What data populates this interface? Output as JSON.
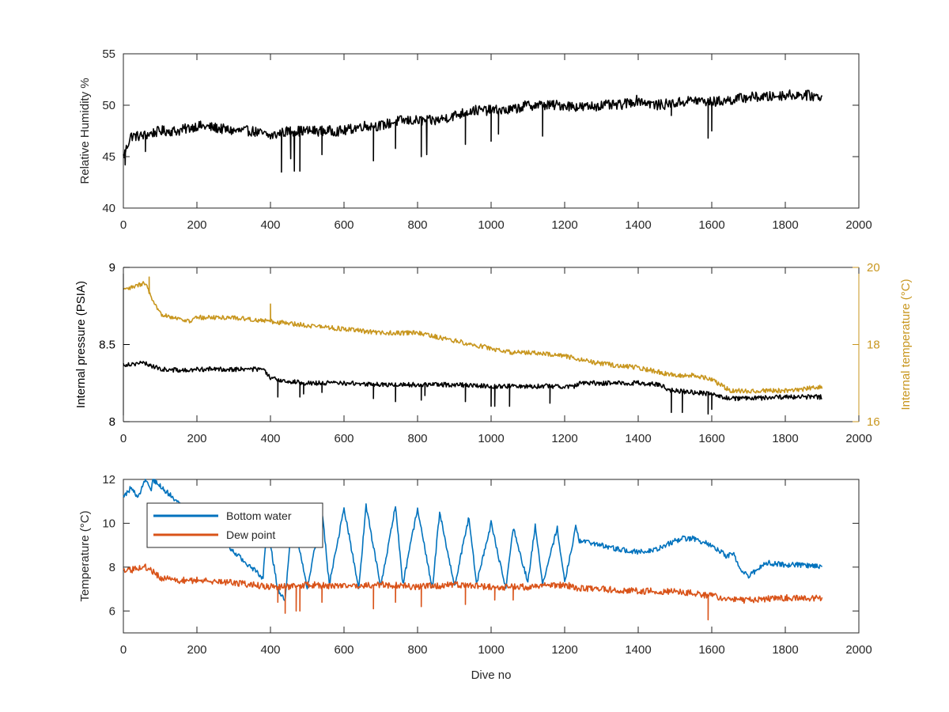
{
  "colors": {
    "black": "#000000",
    "pressure": "#000000",
    "temperature_axis": "#c8961e",
    "temperature_series": "#c8961e",
    "bottom_water": "#0072bd",
    "dew_point": "#d95319",
    "axis": "#262626"
  },
  "chart_data": [
    {
      "id": "humidity",
      "type": "line",
      "xlabel": "",
      "ylabel": "Relative Humidity %",
      "xlim": [
        0,
        2000
      ],
      "ylim": [
        40,
        55
      ],
      "xticks": [
        0,
        200,
        400,
        600,
        800,
        1000,
        1200,
        1400,
        1600,
        1800,
        2000
      ],
      "yticks": [
        40,
        45,
        50,
        55
      ],
      "xtick_labels": [
        "0",
        "200",
        "400",
        "600",
        "800",
        "1000",
        "1200",
        "1400",
        "1600",
        "1800",
        "2000"
      ],
      "ytick_labels": [
        "40",
        "45",
        "50",
        "55"
      ],
      "grid": false,
      "series": [
        {
          "name": "",
          "color": "#000000",
          "x": [
            0,
            20,
            50,
            100,
            150,
            200,
            250,
            300,
            350,
            400,
            450,
            500,
            550,
            600,
            650,
            700,
            750,
            800,
            850,
            900,
            950,
            1000,
            1050,
            1100,
            1150,
            1200,
            1250,
            1300,
            1350,
            1400,
            1450,
            1500,
            1550,
            1600,
            1650,
            1700,
            1750,
            1800,
            1850,
            1900
          ],
          "y": [
            45.0,
            47.0,
            47.0,
            47.5,
            47.5,
            48.0,
            47.8,
            47.5,
            47.5,
            47.0,
            47.5,
            47.5,
            47.5,
            47.5,
            48.0,
            48.0,
            48.5,
            48.5,
            48.5,
            49.0,
            49.5,
            49.5,
            49.5,
            50.0,
            50.0,
            50.0,
            49.8,
            50.0,
            50.0,
            50.5,
            50.0,
            50.2,
            50.5,
            50.3,
            50.5,
            50.8,
            50.8,
            51.0,
            51.0,
            50.8
          ],
          "noise": 0.5,
          "spikes": [
            [
              5,
              44.2
            ],
            [
              60,
              45.5
            ],
            [
              430,
              43.5
            ],
            [
              455,
              44.8
            ],
            [
              465,
              43.6
            ],
            [
              480,
              43.6
            ],
            [
              540,
              45.2
            ],
            [
              680,
              44.6
            ],
            [
              740,
              45.8
            ],
            [
              810,
              45.0
            ],
            [
              825,
              45.2
            ],
            [
              930,
              46.2
            ],
            [
              1000,
              46.5
            ],
            [
              1020,
              47.2
            ],
            [
              1140,
              47.0
            ],
            [
              1490,
              49.0
            ],
            [
              1590,
              46.8
            ],
            [
              1600,
              47.5
            ]
          ]
        }
      ]
    },
    {
      "id": "pressure",
      "type": "line",
      "xlabel": "",
      "ylabel": "Internal pressure (PSIA)",
      "ylabel_right": "Internal temperature (°C)",
      "xlim": [
        0,
        2000
      ],
      "ylim": [
        8,
        9
      ],
      "ylim_right": [
        16,
        20
      ],
      "xticks": [
        0,
        200,
        400,
        600,
        800,
        1000,
        1200,
        1400,
        1600,
        1800,
        2000
      ],
      "yticks": [
        8,
        8.5,
        9
      ],
      "yticks_right": [
        16,
        18,
        20
      ],
      "xtick_labels": [
        "0",
        "200",
        "400",
        "600",
        "800",
        "1000",
        "1200",
        "1400",
        "1600",
        "1800",
        "2000"
      ],
      "ytick_labels": [
        "8",
        "8.5",
        "9"
      ],
      "ytick_labels_right": [
        "16",
        "18",
        "20"
      ],
      "grid": false,
      "series": [
        {
          "name": "",
          "axis": "left",
          "color": "#000000",
          "x": [
            0,
            50,
            70,
            100,
            180,
            200,
            300,
            380,
            400,
            450,
            500,
            600,
            700,
            800,
            900,
            1000,
            1100,
            1200,
            1230,
            1240,
            1300,
            1400,
            1460,
            1480,
            1500,
            1600,
            1650,
            1700,
            1800,
            1900
          ],
          "y": [
            8.37,
            8.38,
            8.37,
            8.34,
            8.33,
            8.34,
            8.34,
            8.34,
            8.28,
            8.26,
            8.25,
            8.25,
            8.24,
            8.24,
            8.24,
            8.23,
            8.23,
            8.23,
            8.23,
            8.25,
            8.25,
            8.25,
            8.24,
            8.21,
            8.2,
            8.18,
            8.15,
            8.15,
            8.16,
            8.16
          ],
          "noise": 0.015,
          "spikes": [
            [
              420,
              8.16
            ],
            [
              480,
              8.16
            ],
            [
              490,
              8.18
            ],
            [
              540,
              8.19
            ],
            [
              680,
              8.15
            ],
            [
              740,
              8.13
            ],
            [
              810,
              8.14
            ],
            [
              820,
              8.17
            ],
            [
              930,
              8.13
            ],
            [
              1000,
              8.1
            ],
            [
              1010,
              8.1
            ],
            [
              1050,
              8.1
            ],
            [
              1160,
              8.12
            ],
            [
              1490,
              8.06
            ],
            [
              1520,
              8.06
            ],
            [
              1590,
              8.05
            ],
            [
              1600,
              8.08
            ]
          ]
        },
        {
          "name": "",
          "axis": "right",
          "color": "#c8961e",
          "x": [
            0,
            30,
            60,
            80,
            100,
            180,
            200,
            300,
            400,
            500,
            600,
            700,
            800,
            900,
            1000,
            1050,
            1100,
            1200,
            1300,
            1400,
            1450,
            1500,
            1550,
            1600,
            1650,
            1700,
            1800,
            1900
          ],
          "y": [
            19.4,
            19.5,
            19.6,
            19.1,
            18.8,
            18.6,
            18.7,
            18.7,
            18.6,
            18.5,
            18.4,
            18.3,
            18.3,
            18.1,
            17.9,
            17.8,
            17.8,
            17.7,
            17.5,
            17.4,
            17.3,
            17.2,
            17.2,
            17.1,
            16.8,
            16.8,
            16.8,
            16.9
          ],
          "noise": 0.06,
          "spikes": [
            [
              400,
              19.05
            ],
            [
              70,
              19.75
            ]
          ]
        }
      ]
    },
    {
      "id": "temperature",
      "type": "line",
      "xlabel": "Dive no",
      "ylabel": "Temperature (°C)",
      "xlim": [
        0,
        2000
      ],
      "ylim": [
        5,
        12
      ],
      "xticks": [
        0,
        200,
        400,
        600,
        800,
        1000,
        1200,
        1400,
        1600,
        1800,
        2000
      ],
      "yticks": [
        6,
        8,
        10,
        12
      ],
      "xtick_labels": [
        "0",
        "200",
        "400",
        "600",
        "800",
        "1000",
        "1200",
        "1400",
        "1600",
        "1800",
        "2000"
      ],
      "ytick_labels": [
        "6",
        "8",
        "10",
        "12"
      ],
      "grid": false,
      "legend": {
        "position": "top-left",
        "entries": [
          "Bottom water",
          "Dew point"
        ]
      },
      "series": [
        {
          "name": "Bottom water",
          "color": "#0072bd",
          "x": [
            0,
            20,
            40,
            60,
            75,
            80,
            380,
            390,
            420,
            440,
            460,
            500,
            540,
            560,
            600,
            640,
            660,
            700,
            740,
            760,
            800,
            840,
            860,
            900,
            940,
            960,
            1000,
            1040,
            1060,
            1100,
            1120,
            1140,
            1180,
            1200,
            1230,
            1240,
            1300,
            1350,
            1400,
            1450,
            1500,
            1520,
            1550,
            1600,
            1640,
            1660,
            1680,
            1700,
            1750,
            1800,
            1850,
            1900
          ],
          "y": [
            11.2,
            11.6,
            11.2,
            12.0,
            11.4,
            12.0,
            7.5,
            10.0,
            7.0,
            6.5,
            10.5,
            7.0,
            10.6,
            7.2,
            10.7,
            7.0,
            10.8,
            7.1,
            10.8,
            7.2,
            10.7,
            7.0,
            10.5,
            7.1,
            10.3,
            7.2,
            10.0,
            7.0,
            9.8,
            7.3,
            9.9,
            7.2,
            9.8,
            7.3,
            9.8,
            9.2,
            9.0,
            8.8,
            8.7,
            8.8,
            9.2,
            9.3,
            9.3,
            9.0,
            8.5,
            8.6,
            7.8,
            7.6,
            8.2,
            8.1,
            8.1,
            8.0
          ],
          "noise": 0.12,
          "spikes": []
        },
        {
          "name": "Dew point",
          "color": "#d95319",
          "x": [
            0,
            30,
            60,
            80,
            100,
            150,
            200,
            300,
            400,
            450,
            500,
            600,
            700,
            800,
            900,
            1000,
            1100,
            1200,
            1250,
            1300,
            1400,
            1450,
            1500,
            1550,
            1600,
            1650,
            1700,
            1800,
            1900
          ],
          "y": [
            7.8,
            7.9,
            8.0,
            7.8,
            7.5,
            7.4,
            7.4,
            7.3,
            7.1,
            7.1,
            7.2,
            7.1,
            7.2,
            7.1,
            7.2,
            7.1,
            7.1,
            7.2,
            7.0,
            7.0,
            6.9,
            6.9,
            6.9,
            6.8,
            6.7,
            6.5,
            6.5,
            6.6,
            6.6
          ],
          "noise": 0.15,
          "spikes": [
            [
              420,
              6.4
            ],
            [
              440,
              5.9
            ],
            [
              470,
              6.0
            ],
            [
              480,
              6.0
            ],
            [
              540,
              6.4
            ],
            [
              680,
              6.1
            ],
            [
              740,
              6.4
            ],
            [
              810,
              6.2
            ],
            [
              930,
              6.3
            ],
            [
              1010,
              6.5
            ],
            [
              1060,
              6.5
            ],
            [
              1590,
              5.6
            ]
          ]
        }
      ]
    }
  ]
}
